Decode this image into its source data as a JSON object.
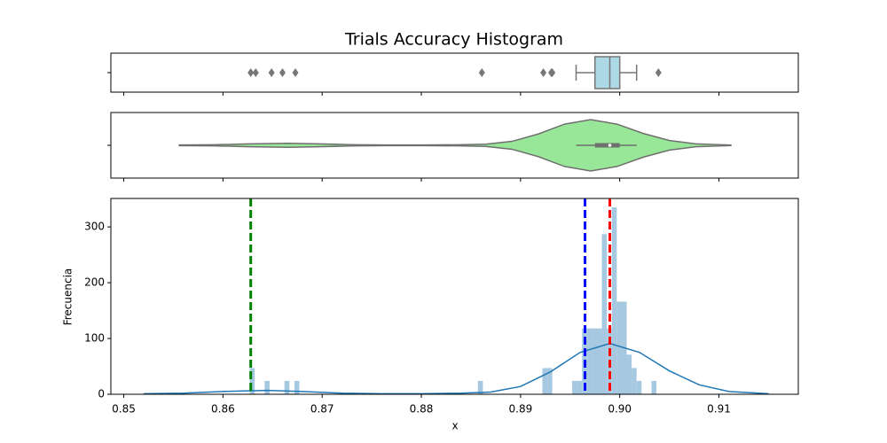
{
  "chart_data": {
    "type": "histogram",
    "title": "Trials Accuracy Histogram",
    "x_label": "x",
    "y_label": "Frecuencia",
    "xlim": [
      0.8487,
      0.918
    ],
    "xticks": [
      0.85,
      0.86,
      0.87,
      0.88,
      0.89,
      {
        "value": 0.9,
        "label": "0.90"
      },
      0.91
    ],
    "ylim": [
      0,
      351
    ],
    "yticks": [
      0,
      100,
      200,
      300
    ],
    "color": "#a6c8e0",
    "bins": [
      0.8627,
      0.8632,
      0.8637,
      0.8642,
      0.8647,
      0.8652,
      0.8657,
      0.8662,
      0.8667,
      0.8672,
      0.8677,
      0.8682,
      0.8687,
      0.8692,
      0.8697,
      0.8702,
      0.8707,
      0.8712,
      0.8717,
      0.8722,
      0.8727,
      0.8732,
      0.8737,
      0.8742,
      0.8747,
      0.8752,
      0.8757,
      0.8762,
      0.8767,
      0.8772,
      0.8777,
      0.8782,
      0.8787,
      0.8792,
      0.8797,
      0.8802,
      0.8807,
      0.8812,
      0.8817,
      0.8822,
      0.8827,
      0.8832,
      0.8837,
      0.8842,
      0.8847,
      0.8852,
      0.8857,
      0.8862,
      0.8867,
      0.8872,
      0.8877,
      0.8882,
      0.8887,
      0.8892,
      0.8897,
      0.8902,
      0.8907,
      0.8912,
      0.8917,
      0.8922,
      0.8927,
      0.8932,
      0.8937,
      0.8942,
      0.8947,
      0.8952,
      0.8957,
      0.8962,
      0.8967,
      0.8972,
      0.8977,
      0.8982,
      0.8987,
      0.8992,
      0.8997,
      0.9002,
      0.9007,
      0.9012,
      0.9017,
      0.9022,
      0.9027,
      0.9032,
      0.9037,
      0.9042,
      0.9047
    ],
    "counts": [
      47,
      0,
      0,
      24,
      0,
      0,
      0,
      24,
      0,
      24,
      0,
      0,
      0,
      0,
      0,
      0,
      0,
      0,
      0,
      0,
      0,
      0,
      0,
      0,
      0,
      0,
      0,
      0,
      0,
      0,
      0,
      0,
      0,
      0,
      0,
      0,
      0,
      0,
      0,
      0,
      0,
      0,
      0,
      0,
      0,
      0,
      24,
      0,
      0,
      0,
      0,
      0,
      0,
      0,
      0,
      0,
      0,
      0,
      0,
      47,
      47,
      0,
      0,
      0,
      0,
      24,
      24,
      118,
      118,
      118,
      118,
      287,
      118,
      335,
      166,
      166,
      71,
      47,
      24,
      0,
      0,
      24,
      0,
      0
    ],
    "kde": {
      "color": "#1f77b4",
      "x": [
        0.852,
        0.856,
        0.86,
        0.8645,
        0.868,
        0.872,
        0.876,
        0.88,
        0.884,
        0.887,
        0.89,
        0.893,
        0.896,
        0.899,
        0.902,
        0.905,
        0.908,
        0.911,
        0.915
      ],
      "values": [
        1,
        2,
        5,
        7,
        5,
        2,
        1,
        1,
        2,
        4,
        14,
        40,
        75,
        91,
        75,
        42,
        17,
        5,
        1
      ]
    },
    "vlines": [
      {
        "value": 0.8628,
        "color": "#008000"
      },
      {
        "value": 0.8965,
        "color": "#0000ff"
      },
      {
        "value": 0.899,
        "color": "#ff0000"
      }
    ],
    "boxplot": {
      "color": "#add8e6",
      "whisker_low": 0.8956,
      "q1": 0.8975,
      "median": 0.899,
      "q3": 0.9,
      "whisker_high": 0.9017,
      "outliers": [
        0.8628,
        0.8633,
        0.8649,
        0.866,
        0.8673,
        0.8861,
        0.8923,
        0.8931,
        0.8932,
        0.9039
      ]
    },
    "violin": {
      "color": "#98e698",
      "min": 0.8556,
      "max": 0.9112
    }
  }
}
